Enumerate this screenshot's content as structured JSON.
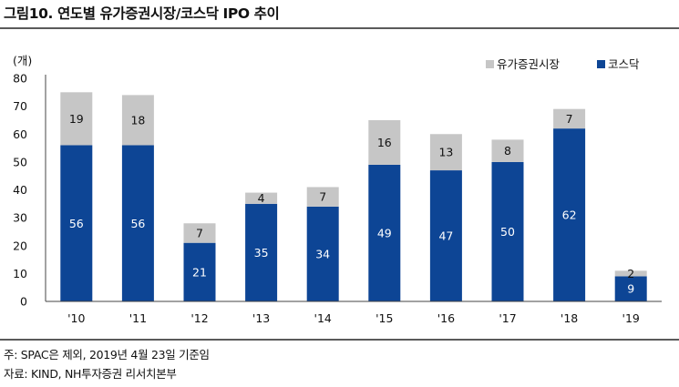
{
  "title": "그림10. 연도별 유가증권시장/코스닥 IPO 추이",
  "notes": {
    "note1": "주: SPAC은 제외, 2019년 4월 23일 기준임",
    "note2": "자료: KIND, NH투자증권 리서치본부"
  },
  "colors": {
    "kosdaq": "#0d4595",
    "kospi": "#c6c6c6"
  },
  "chart_data": {
    "type": "bar",
    "stacked": true,
    "unit_label": "(개)",
    "categories": [
      "'10",
      "'11",
      "'12",
      "'13",
      "'14",
      "'15",
      "'16",
      "'17",
      "'18",
      "'19"
    ],
    "series": [
      {
        "name": "코스닥",
        "values": [
          56,
          56,
          21,
          35,
          34,
          49,
          47,
          50,
          62,
          9
        ]
      },
      {
        "name": "유가증권시장",
        "values": [
          19,
          18,
          7,
          4,
          7,
          16,
          13,
          8,
          7,
          2
        ]
      }
    ],
    "ylim": [
      0,
      80
    ],
    "yticks": [
      0,
      10,
      20,
      30,
      40,
      50,
      60,
      70,
      80
    ],
    "legend_position": "top-right",
    "legend_order": [
      "유가증권시장",
      "코스닥"
    ],
    "grid": false
  }
}
